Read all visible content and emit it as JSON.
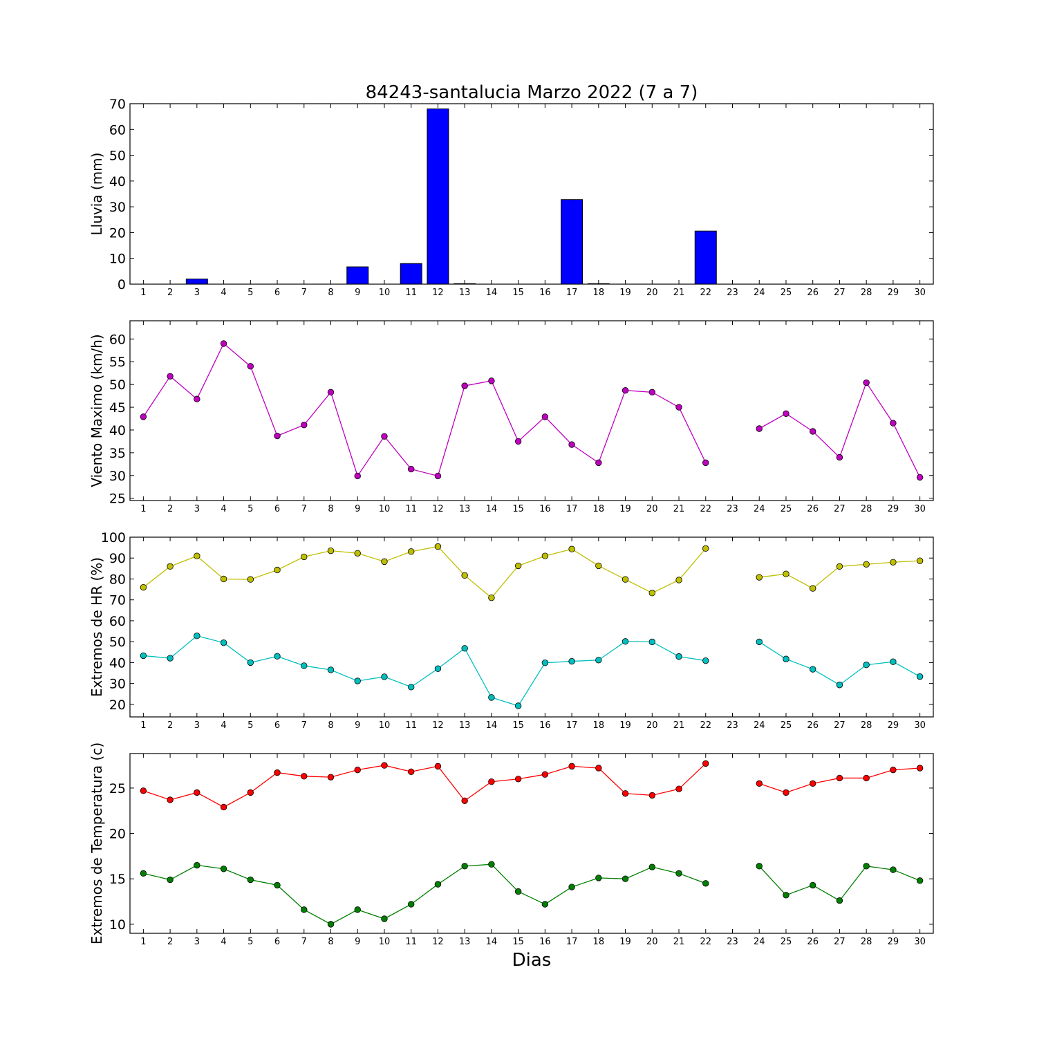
{
  "title": "84243-santalucia Marzo 2022  (7 a 7)",
  "xlabel": "Dias",
  "chart_data": [
    {
      "id": "lluvia",
      "type": "bar",
      "ylabel": "Lluvia (mm)",
      "ylim": [
        0,
        70
      ],
      "yticks": [
        0,
        10,
        20,
        30,
        40,
        50,
        60,
        70
      ],
      "x": [
        1,
        2,
        3,
        4,
        5,
        6,
        7,
        8,
        9,
        10,
        11,
        12,
        13,
        14,
        15,
        16,
        17,
        18,
        19,
        20,
        21,
        22,
        23,
        24,
        25,
        26,
        27,
        28,
        29,
        30
      ],
      "series": [
        {
          "color": "#0000ff",
          "values": [
            0,
            0,
            2,
            0,
            0,
            0,
            0,
            0,
            6.7,
            0,
            8,
            68,
            0.2,
            0,
            0,
            0,
            32.8,
            0.2,
            0,
            0,
            0,
            20.6,
            0,
            0,
            0,
            0,
            0,
            0,
            0,
            0
          ]
        }
      ]
    },
    {
      "id": "viento",
      "type": "line",
      "ylabel": "Viento Maximo (km/h)",
      "ylim": [
        24.5,
        64
      ],
      "yticks": [
        25,
        30,
        35,
        40,
        45,
        50,
        55,
        60
      ],
      "x": [
        1,
        2,
        3,
        4,
        5,
        6,
        7,
        8,
        9,
        10,
        11,
        12,
        13,
        14,
        15,
        16,
        17,
        18,
        19,
        20,
        21,
        22,
        23,
        24,
        25,
        26,
        27,
        28,
        29,
        30
      ],
      "series": [
        {
          "color": "#bf00bf",
          "values": [
            42.9,
            51.8,
            46.8,
            59,
            54,
            38.7,
            41.1,
            48.3,
            29.9,
            38.6,
            31.4,
            29.9,
            49.7,
            50.8,
            37.5,
            42.9,
            36.8,
            32.8,
            48.7,
            48.3,
            45,
            32.8,
            null,
            40.3,
            43.6,
            39.7,
            34,
            50.4,
            41.5,
            29.6
          ]
        }
      ]
    },
    {
      "id": "hr",
      "type": "line",
      "ylabel": "Extremos de HR (%)",
      "ylim": [
        14,
        100
      ],
      "yticks": [
        20,
        30,
        40,
        50,
        60,
        70,
        80,
        90,
        100
      ],
      "x": [
        1,
        2,
        3,
        4,
        5,
        6,
        7,
        8,
        9,
        10,
        11,
        12,
        13,
        14,
        15,
        16,
        17,
        18,
        19,
        20,
        21,
        22,
        23,
        24,
        25,
        26,
        27,
        28,
        29,
        30
      ],
      "series": [
        {
          "color": "#bfbf00",
          "values": [
            76,
            86,
            91,
            80,
            79.8,
            84.3,
            90.6,
            93.5,
            92.3,
            88.3,
            93.1,
            95.5,
            81.7,
            71,
            86.3,
            91,
            94.3,
            86.3,
            79.8,
            73.3,
            79.5,
            94.6,
            null,
            80.8,
            82.4,
            75.5,
            86,
            87,
            88,
            88.7
          ]
        },
        {
          "color": "#00bfbf",
          "values": [
            43.3,
            42.1,
            52.8,
            49.5,
            40,
            43,
            38.5,
            36.5,
            31.2,
            33.2,
            28.3,
            37.1,
            46.8,
            23.3,
            19.3,
            39.9,
            40.6,
            41.2,
            50.1,
            49.9,
            42.9,
            40.9,
            null,
            49.9,
            41.7,
            36.8,
            29.3,
            38.9,
            40.4,
            33.3
          ]
        }
      ]
    },
    {
      "id": "temperatura",
      "type": "line",
      "ylabel": "Extremos de Temperatura (c)",
      "ylim": [
        9,
        28.8
      ],
      "yticks": [
        10,
        15,
        20,
        25
      ],
      "x": [
        1,
        2,
        3,
        4,
        5,
        6,
        7,
        8,
        9,
        10,
        11,
        12,
        13,
        14,
        15,
        16,
        17,
        18,
        19,
        20,
        21,
        22,
        23,
        24,
        25,
        26,
        27,
        28,
        29,
        30
      ],
      "series": [
        {
          "color": "#ff0000",
          "values": [
            24.7,
            23.7,
            24.5,
            22.9,
            24.5,
            26.7,
            26.3,
            26.2,
            27,
            27.5,
            26.8,
            27.4,
            23.6,
            25.7,
            26,
            26.5,
            27.4,
            27.2,
            24.4,
            24.2,
            24.9,
            27.7,
            null,
            25.5,
            24.5,
            25.5,
            26.1,
            26.1,
            27,
            27.2
          ]
        },
        {
          "color": "#007f00",
          "values": [
            15.6,
            14.9,
            16.5,
            16.1,
            14.9,
            14.3,
            11.6,
            10,
            11.6,
            10.6,
            12.2,
            14.4,
            16.4,
            16.6,
            13.6,
            12.2,
            14.1,
            15.1,
            15,
            16.3,
            15.6,
            14.5,
            null,
            16.4,
            13.2,
            14.3,
            12.6,
            16.4,
            16,
            14.8
          ]
        }
      ]
    }
  ]
}
